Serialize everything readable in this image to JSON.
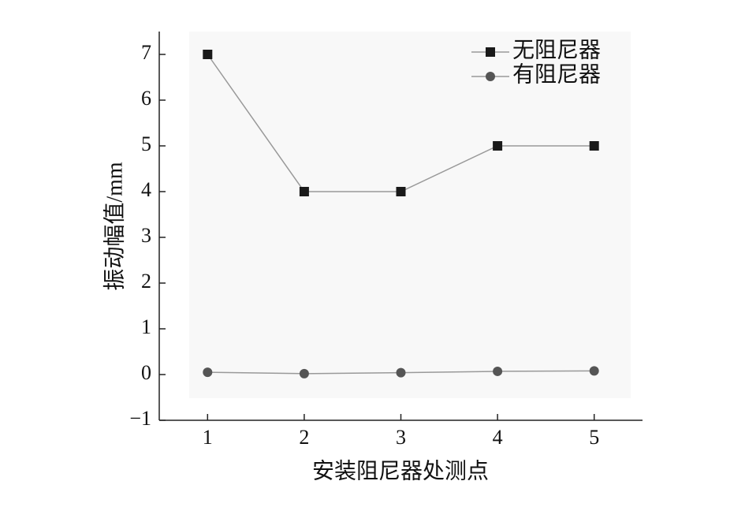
{
  "chart_data": {
    "type": "line",
    "x_label": "安装阻尼器处测点",
    "y_label": "振动幅值/mm",
    "x": [
      1,
      2,
      3,
      4,
      5
    ],
    "series": [
      {
        "name": "无阻尼器",
        "color": "#1a1a1a",
        "marker": "square",
        "values": [
          7,
          4,
          4,
          5,
          5
        ]
      },
      {
        "name": "有阻尼器",
        "color": "#555555",
        "marker": "circle",
        "values": [
          0.05,
          0.02,
          0.04,
          0.07,
          0.08
        ]
      }
    ],
    "line_color": "#999999",
    "xlim": [
      0.5,
      5.5
    ],
    "xticks": [
      1,
      2,
      3,
      4,
      5
    ],
    "ylim": [
      -1,
      7.5
    ],
    "yticks": [
      {
        "value": -1,
        "label": "−1"
      },
      0,
      1,
      2,
      3,
      4,
      5,
      6,
      7
    ],
    "legend": "upper-right"
  }
}
